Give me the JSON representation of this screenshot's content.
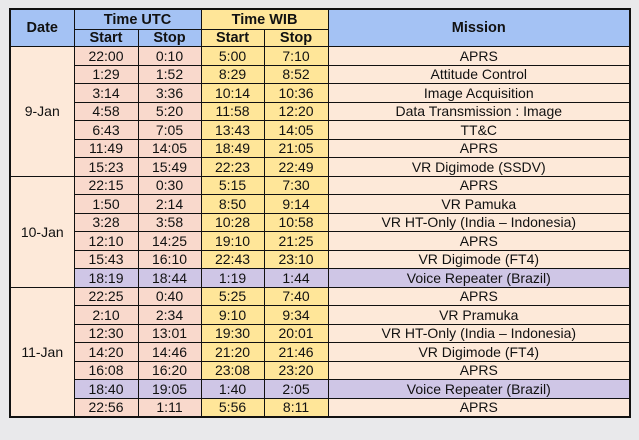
{
  "header": {
    "date": "Date",
    "utc": "Time UTC",
    "wib": "Time WIB",
    "mission": "Mission",
    "start": "Start",
    "stop": "Stop"
  },
  "colors": {
    "header_blue": "#a4c2f4",
    "wib_yellow": "#ffe699",
    "body_peach": "#fde9d9",
    "highlight_purple": "#cfc6e6"
  },
  "groups": [
    {
      "date": "9-Jan",
      "rows": [
        {
          "utc_start": "22:00",
          "utc_stop": "0:10",
          "wib_start": "5:00",
          "wib_stop": "7:10",
          "mission": "APRS"
        },
        {
          "utc_start": "1:29",
          "utc_stop": "1:52",
          "wib_start": "8:29",
          "wib_stop": "8:52",
          "mission": "Attitude Control"
        },
        {
          "utc_start": "3:14",
          "utc_stop": "3:36",
          "wib_start": "10:14",
          "wib_stop": "10:36",
          "mission": "Image Acquisition"
        },
        {
          "utc_start": "4:58",
          "utc_stop": "5:20",
          "wib_start": "11:58",
          "wib_stop": "12:20",
          "mission": "Data Transmission : Image"
        },
        {
          "utc_start": "6:43",
          "utc_stop": "7:05",
          "wib_start": "13:43",
          "wib_stop": "14:05",
          "mission": "TT&C"
        },
        {
          "utc_start": "11:49",
          "utc_stop": "14:05",
          "wib_start": "18:49",
          "wib_stop": "21:05",
          "mission": "APRS"
        },
        {
          "utc_start": "15:23",
          "utc_stop": "15:49",
          "wib_start": "22:23",
          "wib_stop": "22:49",
          "mission": "VR Digimode (SSDV)"
        }
      ]
    },
    {
      "date": "10-Jan",
      "rows": [
        {
          "utc_start": "22:15",
          "utc_stop": "0:30",
          "wib_start": "5:15",
          "wib_stop": "7:30",
          "mission": "APRS"
        },
        {
          "utc_start": "1:50",
          "utc_stop": "2:14",
          "wib_start": "8:50",
          "wib_stop": "9:14",
          "mission": "VR Pamuka"
        },
        {
          "utc_start": "3:28",
          "utc_stop": "3:58",
          "wib_start": "10:28",
          "wib_stop": "10:58",
          "mission": "VR HT-Only (India – Indonesia)"
        },
        {
          "utc_start": "12:10",
          "utc_stop": "14:25",
          "wib_start": "19:10",
          "wib_stop": "21:25",
          "mission": "APRS"
        },
        {
          "utc_start": "15:43",
          "utc_stop": "16:10",
          "wib_start": "22:43",
          "wib_stop": "23:10",
          "mission": "VR Digimode (FT4)"
        },
        {
          "utc_start": "18:19",
          "utc_stop": "18:44",
          "wib_start": "1:19",
          "wib_stop": "1:44",
          "mission": "Voice Repeater (Brazil)",
          "highlight": true
        }
      ]
    },
    {
      "date": "11-Jan",
      "rows": [
        {
          "utc_start": "22:25",
          "utc_stop": "0:40",
          "wib_start": "5:25",
          "wib_stop": "7:40",
          "mission": "APRS"
        },
        {
          "utc_start": "2:10",
          "utc_stop": "2:34",
          "wib_start": "9:10",
          "wib_stop": "9:34",
          "mission": "VR Pramuka"
        },
        {
          "utc_start": "12:30",
          "utc_stop": "13:01",
          "wib_start": "19:30",
          "wib_stop": "20:01",
          "mission": "VR HT-Only (India – Indonesia)"
        },
        {
          "utc_start": "14:20",
          "utc_stop": "14:46",
          "wib_start": "21:20",
          "wib_stop": "21:46",
          "mission": "VR Digimode (FT4)"
        },
        {
          "utc_start": "16:08",
          "utc_stop": "16:20",
          "wib_start": "23:08",
          "wib_stop": "23:20",
          "mission": "APRS"
        },
        {
          "utc_start": "18:40",
          "utc_stop": "19:05",
          "wib_start": "1:40",
          "wib_stop": "2:05",
          "mission": "Voice Repeater (Brazil)",
          "highlight": true
        },
        {
          "utc_start": "22:56",
          "utc_stop": "1:11",
          "wib_start": "5:56",
          "wib_stop": "8:11",
          "mission": "APRS"
        }
      ]
    }
  ]
}
